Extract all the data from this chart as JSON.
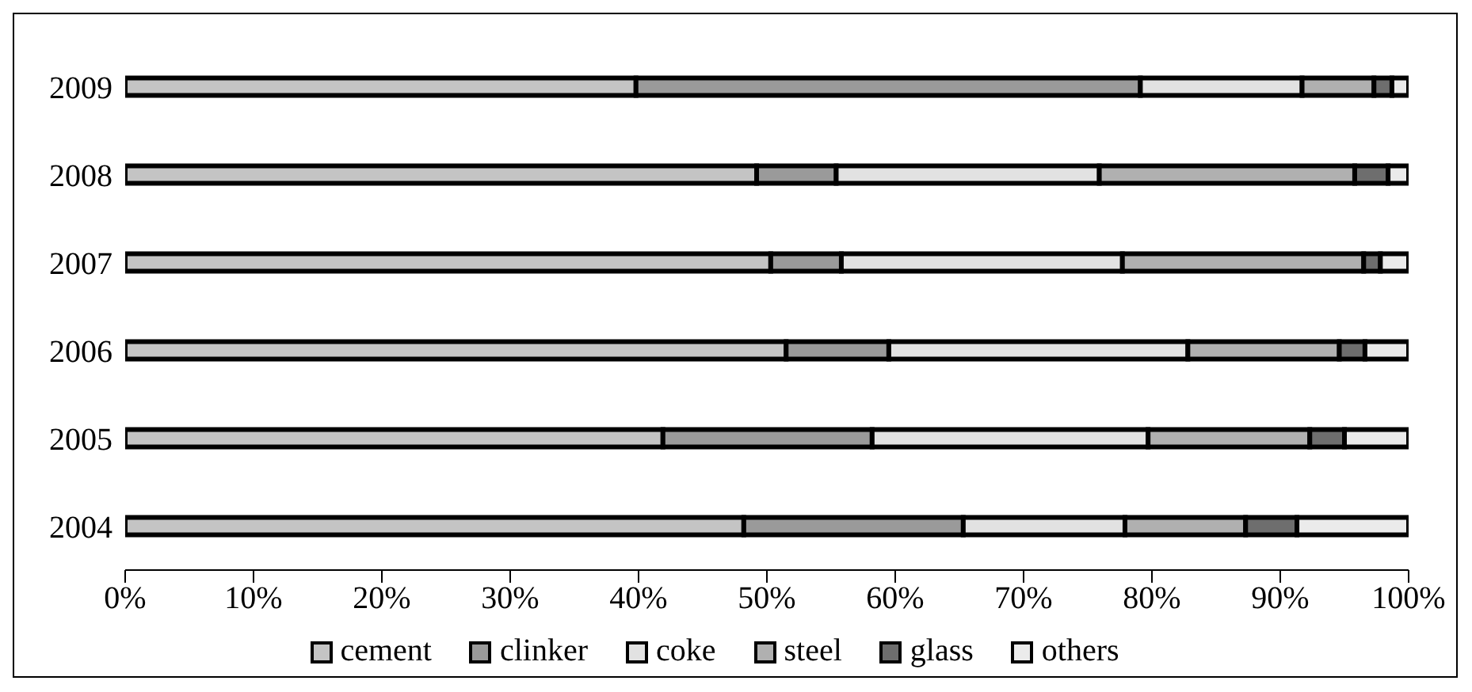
{
  "chart_data": {
    "type": "bar",
    "orientation": "horizontal",
    "stacked": true,
    "categories": [
      "2009",
      "2008",
      "2007",
      "2006",
      "2005",
      "2004"
    ],
    "series": [
      {
        "name": "cement",
        "color": "#c4c4c4",
        "values": [
          39.8,
          49.2,
          50.3,
          51.5,
          41.9,
          48.2
        ]
      },
      {
        "name": "clinker",
        "color": "#9a9a9a",
        "values": [
          39.3,
          6.2,
          5.5,
          8.0,
          16.3,
          17.1
        ]
      },
      {
        "name": "coke",
        "color": "#e2e2e2",
        "values": [
          12.6,
          20.5,
          21.9,
          23.3,
          21.5,
          12.6
        ]
      },
      {
        "name": "steel",
        "color": "#b0b0b0",
        "values": [
          5.6,
          19.9,
          18.8,
          11.8,
          12.6,
          9.4
        ]
      },
      {
        "name": "glass",
        "color": "#6e6e6e",
        "values": [
          1.4,
          2.6,
          1.3,
          2.0,
          2.7,
          4.0
        ]
      },
      {
        "name": "others",
        "color": "#ebebeb",
        "values": [
          1.3,
          1.6,
          2.2,
          3.4,
          5.0,
          8.7
        ]
      }
    ],
    "xlim": [
      0,
      100
    ],
    "xticks": [
      {
        "value": 0,
        "label": "0%"
      },
      {
        "value": 10,
        "label": "10%"
      },
      {
        "value": 20,
        "label": "20%"
      },
      {
        "value": 30,
        "label": "30%"
      },
      {
        "value": 40,
        "label": "40%"
      },
      {
        "value": 50,
        "label": "50%"
      },
      {
        "value": 60,
        "label": "60%"
      },
      {
        "value": 70,
        "label": "70%"
      },
      {
        "value": 80,
        "label": "80%"
      },
      {
        "value": 90,
        "label": "90%"
      },
      {
        "value": 100,
        "label": "100%"
      }
    ],
    "grid": false,
    "legend": "bottom"
  }
}
